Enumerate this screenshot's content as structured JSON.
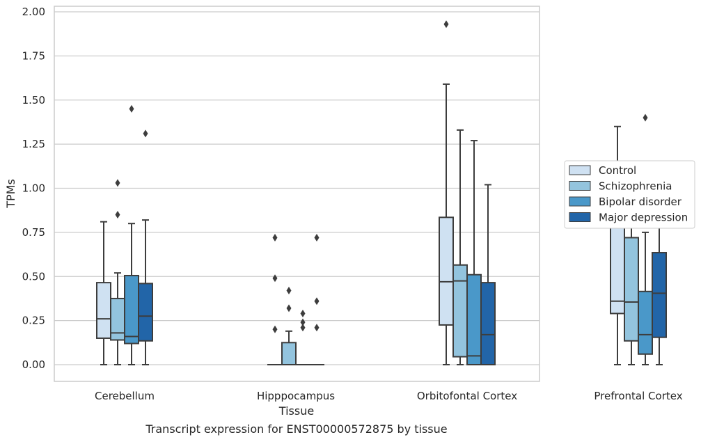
{
  "chart_data": {
    "type": "box",
    "title": "",
    "caption": "Transcript expression for ENST00000572875 by tissue",
    "xlabel": "Tissue",
    "ylabel": "TPMs",
    "ylim": [
      -0.1,
      2.02
    ],
    "yticks": [
      "0.00",
      "0.25",
      "0.50",
      "0.75",
      "1.00",
      "1.25",
      "1.50",
      "1.75",
      "2.00"
    ],
    "ytick_values": [
      0,
      0.25,
      0.5,
      0.75,
      1.0,
      1.25,
      1.5,
      1.75,
      2.0
    ],
    "grid": "horizontal",
    "legend_position": "right",
    "categories": [
      "Cerebellum",
      "Hipppocampus",
      "Orbitofontal Cortex",
      "Prefrontal Cortex"
    ],
    "series": [
      {
        "name": "Control",
        "color": "#cfe1f2",
        "boxes": [
          {
            "min": 0.0,
            "q1": 0.15,
            "median": 0.26,
            "q3": 0.465,
            "max": 0.81,
            "outliers": []
          },
          {
            "min": 0.0,
            "q1": 0.0,
            "median": 0.0,
            "q3": 0.0,
            "max": 0.0,
            "outliers": [
              0.2,
              0.49,
              0.72
            ]
          },
          {
            "min": 0.0,
            "q1": 0.225,
            "median": 0.47,
            "q3": 0.835,
            "max": 1.59,
            "outliers": [
              1.93
            ]
          },
          {
            "min": 0.0,
            "q1": 0.29,
            "median": 0.36,
            "q3": 0.83,
            "max": 1.35,
            "outliers": []
          }
        ]
      },
      {
        "name": "Schizophrenia",
        "color": "#93c4de",
        "boxes": [
          {
            "min": 0.0,
            "q1": 0.14,
            "median": 0.18,
            "q3": 0.375,
            "max": 0.52,
            "outliers": [
              0.85,
              1.03
            ]
          },
          {
            "min": 0.0,
            "q1": 0.0,
            "median": 0.0,
            "q3": 0.125,
            "max": 0.19,
            "outliers": [
              0.32,
              0.42
            ]
          },
          {
            "min": 0.0,
            "q1": 0.045,
            "median": 0.475,
            "q3": 0.565,
            "max": 1.33,
            "outliers": []
          },
          {
            "min": 0.0,
            "q1": 0.135,
            "median": 0.355,
            "q3": 0.72,
            "max": 0.95,
            "outliers": []
          }
        ]
      },
      {
        "name": "Bipolar disorder",
        "color": "#4a98c9",
        "boxes": [
          {
            "min": 0.0,
            "q1": 0.12,
            "median": 0.16,
            "q3": 0.505,
            "max": 0.8,
            "outliers": [
              1.45
            ]
          },
          {
            "min": 0.0,
            "q1": 0.0,
            "median": 0.0,
            "q3": 0.0,
            "max": 0.0,
            "outliers": [
              0.21,
              0.24,
              0.29
            ]
          },
          {
            "min": 0.0,
            "q1": 0.0,
            "median": 0.05,
            "q3": 0.51,
            "max": 1.27,
            "outliers": []
          },
          {
            "min": 0.0,
            "q1": 0.06,
            "median": 0.17,
            "q3": 0.415,
            "max": 0.75,
            "outliers": [
              1.4
            ]
          }
        ]
      },
      {
        "name": "Major depression",
        "color": "#2265a8",
        "boxes": [
          {
            "min": 0.0,
            "q1": 0.135,
            "median": 0.275,
            "q3": 0.46,
            "max": 0.82,
            "outliers": [
              1.31
            ]
          },
          {
            "min": 0.0,
            "q1": 0.0,
            "median": 0.0,
            "q3": 0.0,
            "max": 0.0,
            "outliers": [
              0.21,
              0.36,
              0.72
            ]
          },
          {
            "min": 0.0,
            "q1": 0.0,
            "median": 0.17,
            "q3": 0.465,
            "max": 1.02,
            "outliers": []
          },
          {
            "min": 0.0,
            "q1": 0.155,
            "median": 0.405,
            "q3": 0.635,
            "max": 1.03,
            "outliers": []
          }
        ]
      }
    ]
  }
}
